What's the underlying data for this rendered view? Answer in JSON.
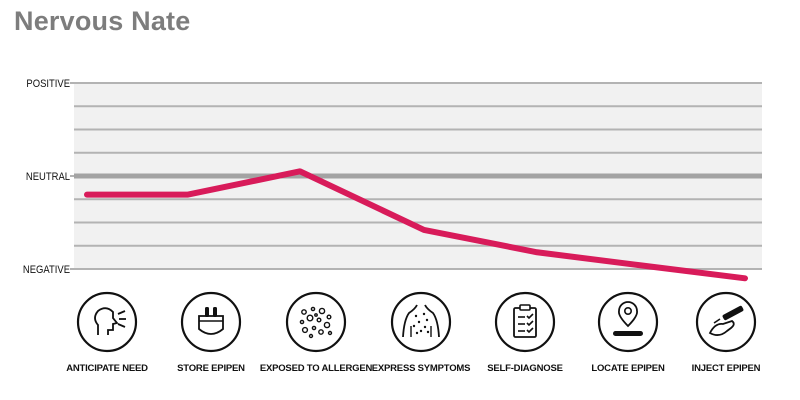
{
  "title": "Nervous Nate",
  "chart_data": {
    "type": "line",
    "title": "Nervous Nate",
    "y_levels": [
      "POSITIVE",
      "NEUTRAL",
      "NEGATIVE"
    ],
    "y_values": [
      1,
      0,
      -1
    ],
    "ylim": [
      -1,
      1
    ],
    "grid": true,
    "categories": [
      "ANTICIPATE NEED",
      "STORE EPIPEN",
      "EXPOSED TO ALLERGEN",
      "EXPRESS SYMPTOMS",
      "SELF-DIAGNOSE",
      "LOCATE EPIPEN",
      "INJECT EPIPEN"
    ],
    "icons": [
      "head-speaking-icon",
      "epipen-pouch-icon",
      "allergen-particles-icon",
      "body-rash-icon",
      "checklist-clipboard-icon",
      "location-pin-icon",
      "hand-injector-icon"
    ],
    "series": [
      {
        "values": [
          -0.2,
          -0.2,
          0.05,
          -0.58,
          -0.82,
          -0.96,
          -1.1
        ]
      }
    ],
    "line_color": "#d81b5a",
    "grid_color": "#b3b3b3",
    "band_color": "#f1f1f1"
  }
}
